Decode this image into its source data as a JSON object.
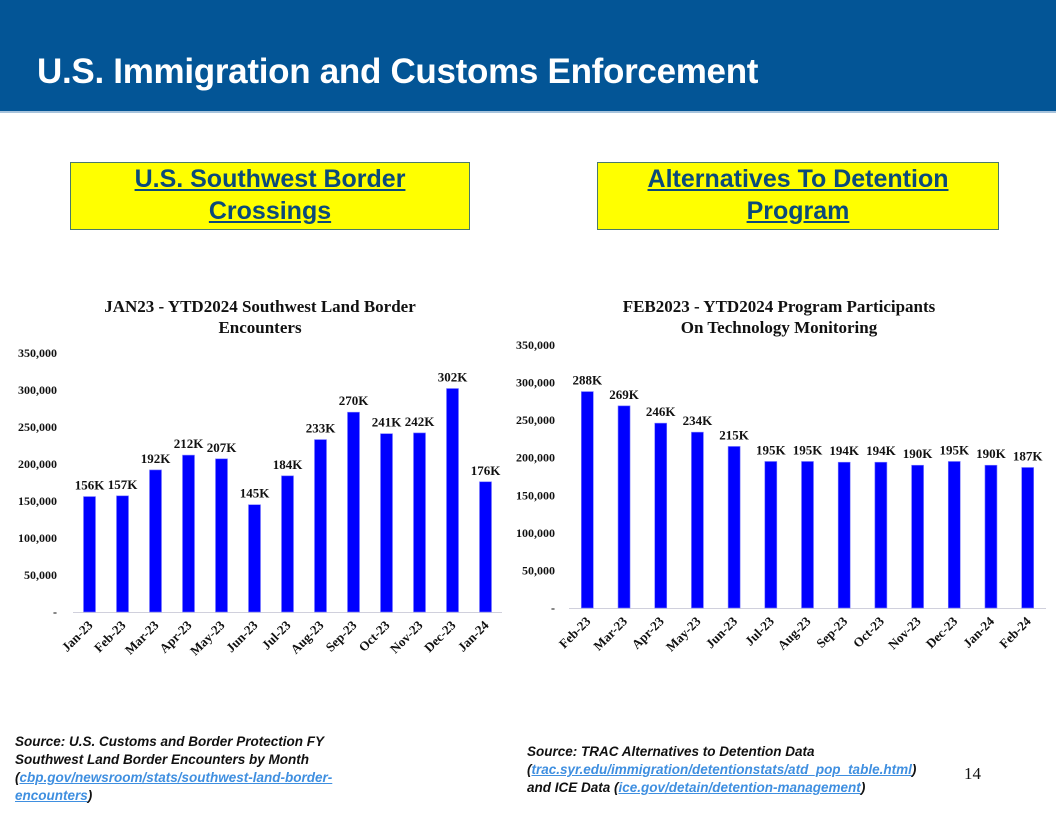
{
  "header": {
    "title": "U.S. Immigration and Customs Enforcement"
  },
  "callouts": {
    "left": {
      "line1": "U.S. Southwest Border",
      "line2": "Crossings"
    },
    "right": {
      "line1": "Alternatives To Detention",
      "line2": "Program"
    }
  },
  "colors": {
    "header_bg": "#035596",
    "callout_bg": "#ffff00",
    "bar": "#0000ff",
    "link": "#3f8fe0"
  },
  "chart_data": [
    {
      "type": "bar",
      "title": [
        "JAN23 - YTD2024 Southwest Land Border",
        "Encounters"
      ],
      "xlabel": "",
      "ylabel": "",
      "ylim": [
        0,
        350000
      ],
      "yticks": [
        0,
        50000,
        100000,
        150000,
        200000,
        250000,
        300000,
        350000
      ],
      "ytick_labels": [
        "-",
        "50,000",
        "100,000",
        "150,000",
        "200,000",
        "250,000",
        "300,000",
        "350,000"
      ],
      "categories": [
        "Jan-23",
        "Feb-23",
        "Mar-23",
        "Apr-23",
        "May-23",
        "Jun-23",
        "Jul-23",
        "Aug-23",
        "Sep-23",
        "Oct-23",
        "Nov-23",
        "Dec-23",
        "Jan-24"
      ],
      "values": [
        156000,
        157000,
        192000,
        212000,
        207000,
        145000,
        184000,
        233000,
        270000,
        241000,
        242000,
        302000,
        176000
      ],
      "data_labels": [
        "156K",
        "157K",
        "192K",
        "212K",
        "207K",
        "145K",
        "184K",
        "233K",
        "270K",
        "241K",
        "242K",
        "302K",
        "176K"
      ],
      "grid": false,
      "legend": "none"
    },
    {
      "type": "bar",
      "title": [
        "FEB2023 - YTD2024 Program Participants",
        "On Technology Monitoring"
      ],
      "xlabel": "",
      "ylabel": "",
      "ylim": [
        0,
        350000
      ],
      "yticks": [
        0,
        50000,
        100000,
        150000,
        200000,
        250000,
        300000,
        350000
      ],
      "ytick_labels": [
        "-",
        "50,000",
        "100,000",
        "150,000",
        "200,000",
        "250,000",
        "300,000",
        "350,000"
      ],
      "categories": [
        "Feb-23",
        "Mar-23",
        "Apr-23",
        "May-23",
        "Jun-23",
        "Jul-23",
        "Aug-23",
        "Sep-23",
        "Oct-23",
        "Nov-23",
        "Dec-23",
        "Jan-24",
        "Feb-24"
      ],
      "values": [
        288000,
        269000,
        246000,
        234000,
        215000,
        195000,
        195000,
        194000,
        194000,
        190000,
        195000,
        190000,
        187000
      ],
      "data_labels": [
        "288K",
        "269K",
        "246K",
        "234K",
        "215K",
        "195K",
        "195K",
        "194K",
        "194K",
        "190K",
        "195K",
        "190K",
        "187K"
      ],
      "grid": false,
      "legend": "none"
    }
  ],
  "sources": {
    "left": {
      "prefix": "Source: U.S. Customs and Border Protection FY Southwest Land Border Encounters by Month (",
      "link": "cbp.gov/newsroom/stats/southwest-land-border-encounters",
      "suffix": ")"
    },
    "right": {
      "line1": "Source: TRAC Alternatives to Detention Data",
      "open1": "(",
      "link1": "trac.syr.edu/immigration/detentionstats/atd_pop_table.html",
      "close1": ")",
      "mid": "and ICE Data (",
      "link2": "ice.gov/detain/detention-management",
      "close2": ")"
    }
  },
  "page_number": "14"
}
